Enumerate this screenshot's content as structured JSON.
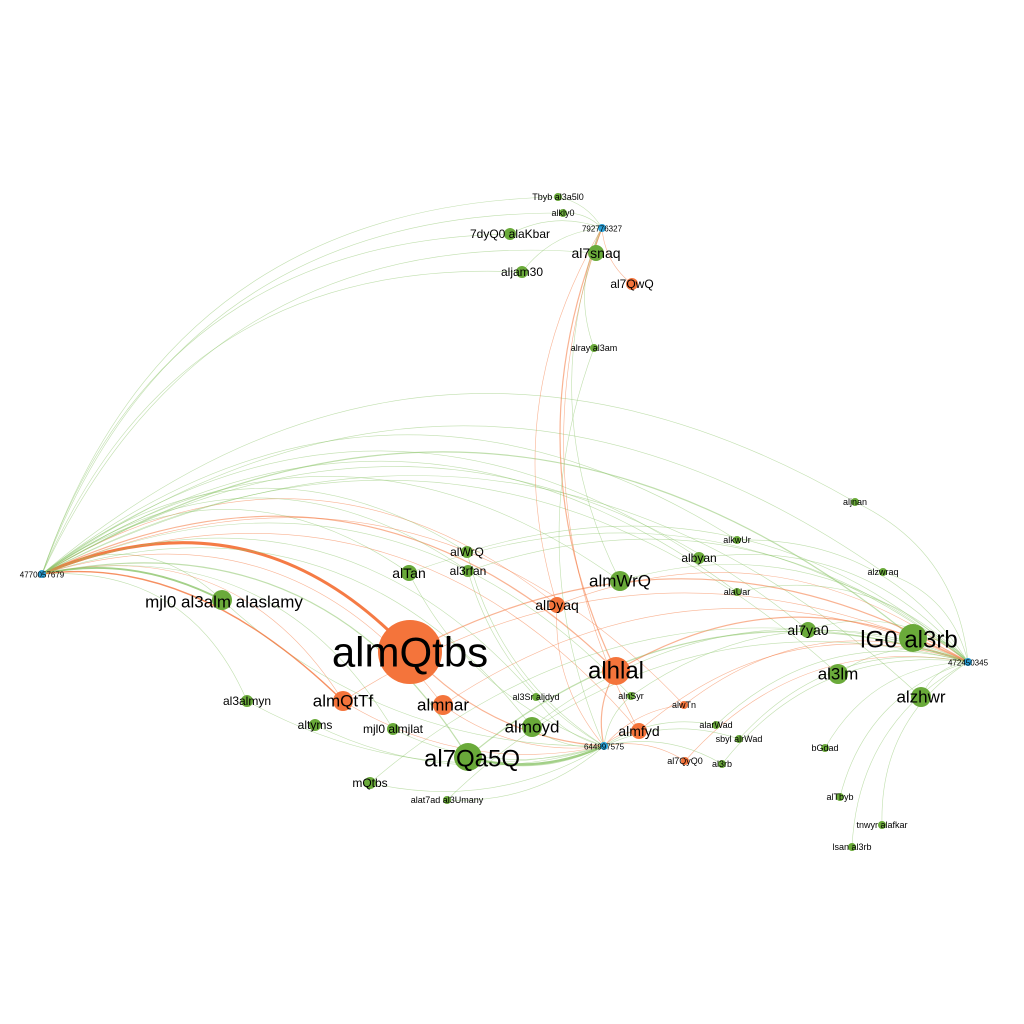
{
  "colors": {
    "green": "#6aaa3a",
    "orange": "#f4743b",
    "blue": "#2a9fd6",
    "edge_green": "#8cc46a",
    "edge_orange": "#f4743b",
    "label": "#000000"
  },
  "hubs": [
    {
      "id": "h1",
      "label": "4770057679"
    },
    {
      "id": "h2",
      "label": "792776327"
    },
    {
      "id": "h3",
      "label": "472450345"
    },
    {
      "id": "h4",
      "label": "644997575"
    }
  ],
  "nodes": [
    {
      "id": "n01",
      "label": "almQtbs",
      "color": "orange",
      "size": "xl"
    },
    {
      "id": "n02",
      "label": "lG0 al3rb",
      "color": "green",
      "size": "lg"
    },
    {
      "id": "n03",
      "label": "mjl0 al3alm alaslamy",
      "color": "green",
      "size": "md"
    },
    {
      "id": "n04",
      "label": "al7Qa5Q",
      "color": "green",
      "size": "lg"
    },
    {
      "id": "n05",
      "label": "alhlal",
      "color": "orange",
      "size": "lg"
    },
    {
      "id": "n06",
      "label": "almWrQ",
      "color": "green",
      "size": "md"
    },
    {
      "id": "n07",
      "label": "almnar",
      "color": "orange",
      "size": "md"
    },
    {
      "id": "n08",
      "label": "almQtTf",
      "color": "orange",
      "size": "md"
    },
    {
      "id": "n09",
      "label": "almoyd",
      "color": "green",
      "size": "md"
    },
    {
      "id": "n10",
      "label": "almfyd",
      "color": "orange",
      "size": "sm"
    },
    {
      "id": "n11",
      "label": "alDyaq",
      "color": "orange",
      "size": "sm"
    },
    {
      "id": "n12",
      "label": "alTan",
      "color": "green",
      "size": "sm"
    },
    {
      "id": "n13",
      "label": "alWrQ",
      "color": "green",
      "size": "xs"
    },
    {
      "id": "n14",
      "label": "al3rfan",
      "color": "green",
      "size": "xs"
    },
    {
      "id": "n15",
      "label": "al7snaq",
      "color": "green",
      "size": "sm"
    },
    {
      "id": "n16",
      "label": "al7QwQ",
      "color": "orange",
      "size": "xs"
    },
    {
      "id": "n17",
      "label": "aljam30",
      "color": "green",
      "size": "xs"
    },
    {
      "id": "n18",
      "label": "7dyQ0 alaKbar",
      "color": "green",
      "size": "xs"
    },
    {
      "id": "n19",
      "label": "alkly0",
      "color": "green",
      "size": "xxs"
    },
    {
      "id": "n20",
      "label": "Tbyb al3a5l0",
      "color": "green",
      "size": "xxs"
    },
    {
      "id": "n21",
      "label": "alray al3am",
      "color": "green",
      "size": "xxs"
    },
    {
      "id": "n22",
      "label": "al3lm",
      "color": "green",
      "size": "md"
    },
    {
      "id": "n23",
      "label": "alzhwr",
      "color": "green",
      "size": "md"
    },
    {
      "id": "n24",
      "label": "al7ya0",
      "color": "green",
      "size": "sm"
    },
    {
      "id": "n25",
      "label": "albyan",
      "color": "green",
      "size": "xs"
    },
    {
      "id": "n26",
      "label": "alkwUr",
      "color": "green",
      "size": "xxs"
    },
    {
      "id": "n27",
      "label": "alaUar",
      "color": "green",
      "size": "xxs"
    },
    {
      "id": "n28",
      "label": "aljnan",
      "color": "green",
      "size": "xxs"
    },
    {
      "id": "n29",
      "label": "alzwraq",
      "color": "green",
      "size": "xxs"
    },
    {
      "id": "n30",
      "label": "al3almyn",
      "color": "green",
      "size": "xs"
    },
    {
      "id": "n31",
      "label": "altyms",
      "color": "green",
      "size": "xs"
    },
    {
      "id": "n32",
      "label": "mjl0 almjlat",
      "color": "green",
      "size": "xs"
    },
    {
      "id": "n33",
      "label": "mQtbs",
      "color": "green",
      "size": "xs"
    },
    {
      "id": "n34",
      "label": "alat7ad al3Umany",
      "color": "green",
      "size": "xxs"
    },
    {
      "id": "n35",
      "label": "al3Sr aljdyd",
      "color": "green",
      "size": "xxs"
    },
    {
      "id": "n36",
      "label": "alnSyr",
      "color": "green",
      "size": "xxs"
    },
    {
      "id": "n37",
      "label": "alwTn",
      "color": "orange",
      "size": "xxs"
    },
    {
      "id": "n38",
      "label": "al7QyQ0",
      "color": "orange",
      "size": "xxs"
    },
    {
      "id": "n39",
      "label": "al3rb",
      "color": "green",
      "size": "xxs"
    },
    {
      "id": "n40",
      "label": "alarWad",
      "color": "green",
      "size": "xxs"
    },
    {
      "id": "n41",
      "label": "sbyl alrWad",
      "color": "green",
      "size": "xxs"
    },
    {
      "id": "n42",
      "label": "bGdad",
      "color": "green",
      "size": "xxs"
    },
    {
      "id": "n43",
      "label": "alTbyb",
      "color": "green",
      "size": "xxs"
    },
    {
      "id": "n44",
      "label": "tnwyr alafkar",
      "color": "green",
      "size": "xxs"
    },
    {
      "id": "n45",
      "label": "lsan al3rb",
      "color": "green",
      "size": "xxs"
    }
  ]
}
